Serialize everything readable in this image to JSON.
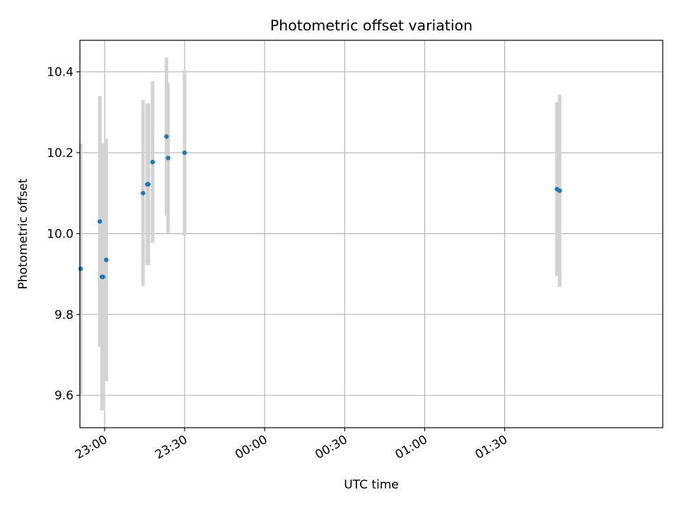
{
  "chart_data": {
    "type": "scatter",
    "title": "Photometric offset variation",
    "xlabel": "UTC time",
    "ylabel": "Photometric offset",
    "x_ticks": [
      "23:00",
      "23:30",
      "00:00",
      "00:30",
      "01:00",
      "01:30"
    ],
    "y_ticks": [
      "9.6",
      "9.8",
      "10.0",
      "10.2",
      "10.4"
    ],
    "xlim": [
      "22:50:45",
      "02:29:15"
    ],
    "ylim": [
      9.52,
      10.478
    ],
    "grid": true,
    "colors": {
      "points": "#1f77b4",
      "errorbars": "#d3d3d3",
      "grid": "#b0b0b0"
    },
    "series": [
      {
        "points": [
          {
            "x": "22:51:00",
            "y": 9.913,
            "yerr": 0.31
          },
          {
            "x": "22:58:12",
            "y": 10.03,
            "yerr": 0.31
          },
          {
            "x": "22:59:00",
            "y": 9.893,
            "yerr": 0.33
          },
          {
            "x": "22:59:24",
            "y": 9.893,
            "yerr": 0.33
          },
          {
            "x": "23:00:36",
            "y": 9.935,
            "yerr": 0.3
          },
          {
            "x": "23:14:24",
            "y": 10.1,
            "yerr": 0.23
          },
          {
            "x": "23:16:00",
            "y": 10.122,
            "yerr": 0.2
          },
          {
            "x": "23:16:24",
            "y": 10.122,
            "yerr": 0.2
          },
          {
            "x": "23:18:00",
            "y": 10.177,
            "yerr": 0.2
          },
          {
            "x": "23:23:12",
            "y": 10.24,
            "yerr": 0.195
          },
          {
            "x": "23:23:48",
            "y": 10.187,
            "yerr": 0.185
          },
          {
            "x": "23:30:00",
            "y": 10.2,
            "yerr": 0.205
          },
          {
            "x": "01:49:36",
            "y": 10.11,
            "yerr": 0.215
          },
          {
            "x": "01:50:36",
            "y": 10.106,
            "yerr": 0.238
          }
        ]
      }
    ]
  }
}
